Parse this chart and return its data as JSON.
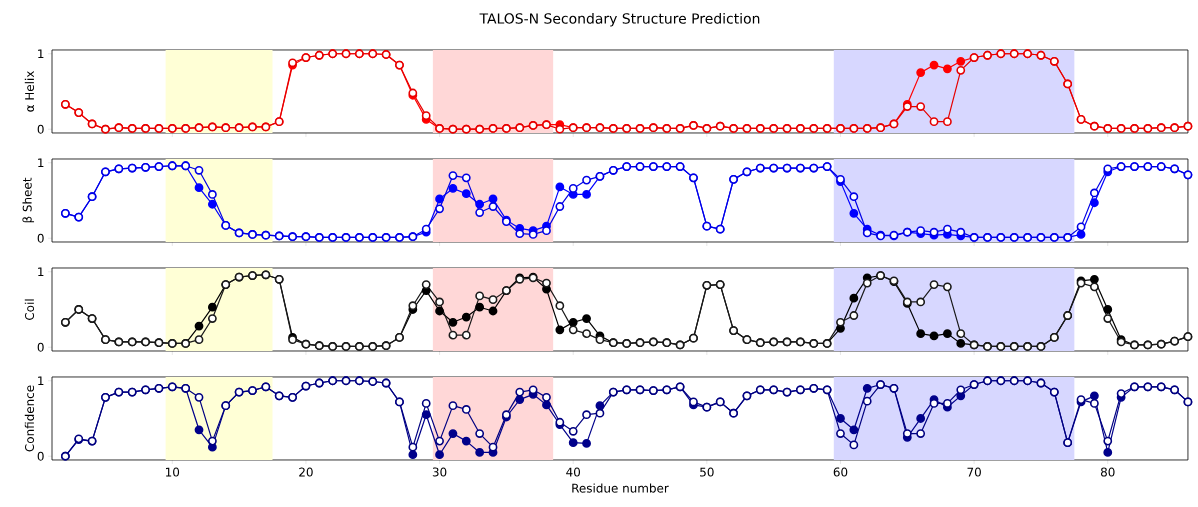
{
  "chart_data": [
    {
      "type": "line",
      "title": "TALOS-N Secondary Structure Prediction",
      "ylabel": "α Helix",
      "marker": "circle",
      "tick_labels": "y",
      "x": [
        2,
        3,
        4,
        5,
        6,
        7,
        8,
        9,
        10,
        11,
        12,
        13,
        14,
        15,
        16,
        17,
        18,
        19,
        20,
        21,
        22,
        23,
        24,
        25,
        26,
        27,
        28,
        29,
        30,
        31,
        32,
        33,
        34,
        35,
        36,
        37,
        38,
        39,
        40,
        41,
        42,
        43,
        44,
        45,
        46,
        47,
        48,
        49,
        50,
        51,
        52,
        53,
        54,
        55,
        56,
        57,
        58,
        59,
        60,
        61,
        62,
        63,
        64,
        65,
        66,
        67,
        68,
        69,
        70,
        71,
        72,
        73,
        74,
        75,
        76,
        77,
        78,
        79,
        80,
        81,
        82,
        83,
        84,
        85,
        86
      ],
      "xlim": [
        1,
        86
      ],
      "xticks": [
        10,
        20,
        30,
        40,
        50,
        60,
        70,
        80
      ],
      "ylim": [
        -0.05,
        1.05
      ],
      "yticks": [
        0,
        1
      ],
      "bands": [
        {
          "axis": "x",
          "from": 9.5,
          "to": 17.5,
          "color": "#ffffd6"
        },
        {
          "axis": "x",
          "from": 29.5,
          "to": 38.5,
          "color": "#ffd7d7"
        },
        {
          "axis": "x",
          "from": 59.5,
          "to": 77.5,
          "color": "#d7d7ff"
        }
      ],
      "series": [
        {
          "color": "#ff0000",
          "values": [
            0.33,
            0.22,
            0.07,
            0.0,
            0.02,
            0.01,
            0.01,
            0.01,
            0.01,
            0.01,
            0.02,
            0.03,
            0.02,
            0.02,
            0.03,
            0.03,
            0.1,
            0.85,
            0.95,
            0.98,
            1.0,
            1.0,
            1.0,
            1.0,
            0.99,
            0.85,
            0.45,
            0.13,
            0.01,
            0.0,
            0.0,
            0.0,
            0.01,
            0.01,
            0.02,
            0.05,
            0.06,
            0.06,
            0.02,
            0.02,
            0.02,
            0.01,
            0.01,
            0.01,
            0.02,
            0.01,
            0.01,
            0.05,
            0.01,
            0.04,
            0.01,
            0.01,
            0.01,
            0.01,
            0.01,
            0.01,
            0.01,
            0.01,
            0.01,
            0.01,
            0.01,
            0.02,
            0.07,
            0.33,
            0.75,
            0.85,
            0.8,
            0.9,
            0.95,
            0.98,
            1.0,
            1.0,
            1.0,
            0.98,
            0.9,
            0.6,
            0.13,
            0.04,
            0.01,
            0.01,
            0.01,
            0.01,
            0.02,
            0.02,
            0.04
          ]
        },
        {
          "color": "#e60000",
          "values": [
            0.33,
            0.22,
            0.07,
            0.0,
            0.02,
            0.01,
            0.01,
            0.01,
            0.01,
            0.01,
            0.02,
            0.03,
            0.02,
            0.02,
            0.03,
            0.03,
            0.1,
            0.88,
            0.95,
            0.98,
            1.0,
            1.0,
            1.0,
            1.0,
            0.99,
            0.85,
            0.48,
            0.18,
            0.01,
            0.0,
            0.0,
            0.0,
            0.01,
            0.01,
            0.02,
            0.05,
            0.06,
            0.0,
            0.02,
            0.02,
            0.02,
            0.01,
            0.01,
            0.01,
            0.02,
            0.01,
            0.01,
            0.05,
            0.01,
            0.04,
            0.01,
            0.01,
            0.01,
            0.01,
            0.01,
            0.01,
            0.01,
            0.01,
            0.01,
            0.01,
            0.01,
            0.02,
            0.07,
            0.3,
            0.3,
            0.1,
            0.1,
            0.78,
            0.95,
            0.98,
            1.0,
            1.0,
            1.0,
            0.98,
            0.9,
            0.6,
            0.13,
            0.04,
            0.01,
            0.01,
            0.01,
            0.01,
            0.02,
            0.02,
            0.04
          ]
        }
      ]
    },
    {
      "type": "line",
      "ylabel": "β Sheet",
      "marker": "circle",
      "tick_labels": "y",
      "x": [
        2,
        3,
        4,
        5,
        6,
        7,
        8,
        9,
        10,
        11,
        12,
        13,
        14,
        15,
        16,
        17,
        18,
        19,
        20,
        21,
        22,
        23,
        24,
        25,
        26,
        27,
        28,
        29,
        30,
        31,
        32,
        33,
        34,
        35,
        36,
        37,
        38,
        39,
        40,
        41,
        42,
        43,
        44,
        45,
        46,
        47,
        48,
        49,
        50,
        51,
        52,
        53,
        54,
        55,
        56,
        57,
        58,
        59,
        60,
        61,
        62,
        63,
        64,
        65,
        66,
        67,
        68,
        69,
        70,
        71,
        72,
        73,
        74,
        75,
        76,
        77,
        78,
        79,
        80,
        81,
        82,
        83,
        84,
        85,
        86
      ],
      "xlim": [
        1,
        86
      ],
      "xticks": [
        10,
        20,
        30,
        40,
        50,
        60,
        70,
        80
      ],
      "ylim": [
        -0.05,
        1.05
      ],
      "yticks": [
        0,
        1
      ],
      "bands": [
        {
          "axis": "x",
          "from": 9.5,
          "to": 17.5,
          "color": "#ffffd6"
        },
        {
          "axis": "x",
          "from": 29.5,
          "to": 38.5,
          "color": "#ffd7d7"
        },
        {
          "axis": "x",
          "from": 59.5,
          "to": 77.5,
          "color": "#d7d7ff"
        }
      ],
      "series": [
        {
          "color": "#0000ff",
          "values": [
            0.33,
            0.28,
            0.55,
            0.88,
            0.92,
            0.93,
            0.94,
            0.95,
            0.96,
            0.96,
            0.67,
            0.45,
            0.17,
            0.07,
            0.05,
            0.04,
            0.03,
            0.02,
            0.02,
            0.01,
            0.01,
            0.01,
            0.01,
            0.01,
            0.01,
            0.01,
            0.02,
            0.08,
            0.52,
            0.66,
            0.59,
            0.45,
            0.52,
            0.24,
            0.13,
            0.1,
            0.16,
            0.68,
            0.58,
            0.58,
            0.82,
            0.9,
            0.95,
            0.95,
            0.95,
            0.95,
            0.95,
            0.8,
            0.16,
            0.12,
            0.78,
            0.88,
            0.93,
            0.93,
            0.93,
            0.93,
            0.93,
            0.95,
            0.75,
            0.33,
            0.12,
            0.04,
            0.03,
            0.08,
            0.06,
            0.04,
            0.05,
            0.03,
            0.01,
            0.01,
            0.01,
            0.01,
            0.01,
            0.01,
            0.01,
            0.01,
            0.05,
            0.47,
            0.88,
            0.95,
            0.95,
            0.95,
            0.95,
            0.92,
            0.84
          ]
        },
        {
          "color": "#0000e6",
          "values": [
            0.33,
            0.28,
            0.55,
            0.88,
            0.92,
            0.93,
            0.94,
            0.95,
            0.96,
            0.96,
            0.9,
            0.58,
            0.17,
            0.07,
            0.05,
            0.04,
            0.03,
            0.02,
            0.02,
            0.01,
            0.01,
            0.01,
            0.01,
            0.01,
            0.01,
            0.01,
            0.02,
            0.12,
            0.39,
            0.83,
            0.8,
            0.34,
            0.42,
            0.22,
            0.06,
            0.05,
            0.1,
            0.42,
            0.66,
            0.77,
            0.82,
            0.9,
            0.95,
            0.95,
            0.95,
            0.95,
            0.95,
            0.8,
            0.16,
            0.12,
            0.78,
            0.88,
            0.93,
            0.93,
            0.93,
            0.93,
            0.93,
            0.95,
            0.78,
            0.55,
            0.07,
            0.03,
            0.04,
            0.08,
            0.1,
            0.08,
            0.12,
            0.08,
            0.01,
            0.01,
            0.01,
            0.01,
            0.01,
            0.01,
            0.01,
            0.01,
            0.15,
            0.6,
            0.92,
            0.95,
            0.95,
            0.95,
            0.95,
            0.92,
            0.84
          ]
        }
      ]
    },
    {
      "type": "line",
      "ylabel": "Coil",
      "marker": "circle",
      "tick_labels": "y",
      "x": [
        2,
        3,
        4,
        5,
        6,
        7,
        8,
        9,
        10,
        11,
        12,
        13,
        14,
        15,
        16,
        17,
        18,
        19,
        20,
        21,
        22,
        23,
        24,
        25,
        26,
        27,
        28,
        29,
        30,
        31,
        32,
        33,
        34,
        35,
        36,
        37,
        38,
        39,
        40,
        41,
        42,
        43,
        44,
        45,
        46,
        47,
        48,
        49,
        50,
        51,
        52,
        53,
        54,
        55,
        56,
        57,
        58,
        59,
        60,
        61,
        62,
        63,
        64,
        65,
        66,
        67,
        68,
        69,
        70,
        71,
        72,
        73,
        74,
        75,
        76,
        77,
        78,
        79,
        80,
        81,
        82,
        83,
        84,
        85,
        86
      ],
      "xlim": [
        1,
        86
      ],
      "xticks": [
        10,
        20,
        30,
        40,
        50,
        60,
        70,
        80
      ],
      "ylim": [
        -0.05,
        1.05
      ],
      "yticks": [
        0,
        1
      ],
      "bands": [
        {
          "axis": "x",
          "from": 9.5,
          "to": 17.5,
          "color": "#ffffd6"
        },
        {
          "axis": "x",
          "from": 29.5,
          "to": 38.5,
          "color": "#ffd7d7"
        },
        {
          "axis": "x",
          "from": 59.5,
          "to": 77.5,
          "color": "#d7d7ff"
        }
      ],
      "series": [
        {
          "color": "#000000",
          "values": [
            0.33,
            0.5,
            0.38,
            0.1,
            0.07,
            0.07,
            0.07,
            0.06,
            0.05,
            0.05,
            0.28,
            0.53,
            0.83,
            0.93,
            0.95,
            0.96,
            0.9,
            0.13,
            0.04,
            0.02,
            0.01,
            0.01,
            0.01,
            0.01,
            0.02,
            0.13,
            0.5,
            0.75,
            0.48,
            0.33,
            0.4,
            0.53,
            0.48,
            0.75,
            0.92,
            0.93,
            0.77,
            0.23,
            0.33,
            0.38,
            0.15,
            0.06,
            0.05,
            0.06,
            0.07,
            0.06,
            0.03,
            0.12,
            0.82,
            0.83,
            0.22,
            0.1,
            0.06,
            0.07,
            0.07,
            0.07,
            0.05,
            0.05,
            0.25,
            0.65,
            0.92,
            0.95,
            0.87,
            0.58,
            0.18,
            0.15,
            0.18,
            0.05,
            0.03,
            0.01,
            0.01,
            0.01,
            0.01,
            0.01,
            0.13,
            0.42,
            0.88,
            0.9,
            0.5,
            0.1,
            0.03,
            0.03,
            0.04,
            0.08,
            0.14
          ]
        },
        {
          "color": "#1a1a1a",
          "values": [
            0.33,
            0.5,
            0.38,
            0.1,
            0.07,
            0.07,
            0.07,
            0.06,
            0.05,
            0.05,
            0.1,
            0.38,
            0.83,
            0.93,
            0.95,
            0.96,
            0.9,
            0.1,
            0.04,
            0.02,
            0.01,
            0.01,
            0.01,
            0.01,
            0.02,
            0.13,
            0.55,
            0.83,
            0.6,
            0.16,
            0.16,
            0.68,
            0.63,
            0.75,
            0.9,
            0.92,
            0.85,
            0.55,
            0.23,
            0.18,
            0.1,
            0.06,
            0.05,
            0.06,
            0.07,
            0.06,
            0.03,
            0.12,
            0.82,
            0.83,
            0.22,
            0.1,
            0.06,
            0.07,
            0.07,
            0.07,
            0.05,
            0.05,
            0.33,
            0.42,
            0.85,
            0.95,
            0.88,
            0.6,
            0.6,
            0.83,
            0.8,
            0.18,
            0.03,
            0.01,
            0.01,
            0.01,
            0.01,
            0.01,
            0.13,
            0.42,
            0.85,
            0.8,
            0.38,
            0.07,
            0.03,
            0.03,
            0.04,
            0.08,
            0.14
          ]
        }
      ]
    },
    {
      "type": "line",
      "ylabel": "Confidence",
      "xlabel": "Residue number",
      "marker": "circle",
      "x": [
        2,
        3,
        4,
        5,
        6,
        7,
        8,
        9,
        10,
        11,
        12,
        13,
        14,
        15,
        16,
        17,
        18,
        19,
        20,
        21,
        22,
        23,
        24,
        25,
        26,
        27,
        28,
        29,
        30,
        31,
        32,
        33,
        34,
        35,
        36,
        37,
        38,
        39,
        40,
        41,
        42,
        43,
        44,
        45,
        46,
        47,
        48,
        49,
        50,
        51,
        52,
        53,
        54,
        55,
        56,
        57,
        58,
        59,
        60,
        61,
        62,
        63,
        64,
        65,
        66,
        67,
        68,
        69,
        70,
        71,
        72,
        73,
        74,
        75,
        76,
        77,
        78,
        79,
        80,
        81,
        82,
        83,
        84,
        85,
        86
      ],
      "xlim": [
        1,
        86
      ],
      "xticks": [
        10,
        20,
        30,
        40,
        50,
        60,
        70,
        80
      ],
      "ylim": [
        -0.05,
        1.05
      ],
      "yticks": [
        0,
        1
      ],
      "bands": [
        {
          "axis": "x",
          "from": 9.5,
          "to": 17.5,
          "color": "#ffffd6"
        },
        {
          "axis": "x",
          "from": 29.5,
          "to": 38.5,
          "color": "#ffd7d7"
        },
        {
          "axis": "x",
          "from": 59.5,
          "to": 77.5,
          "color": "#d7d7ff"
        }
      ],
      "series": [
        {
          "color": "#00008b",
          "values": [
            0.0,
            0.22,
            0.2,
            0.78,
            0.85,
            0.85,
            0.88,
            0.9,
            0.92,
            0.9,
            0.35,
            0.12,
            0.67,
            0.85,
            0.87,
            0.92,
            0.8,
            0.78,
            0.93,
            0.97,
            1.0,
            1.0,
            1.0,
            0.99,
            0.97,
            0.72,
            0.02,
            0.55,
            0.02,
            0.3,
            0.2,
            0.05,
            0.05,
            0.52,
            0.75,
            0.82,
            0.68,
            0.42,
            0.18,
            0.17,
            0.67,
            0.85,
            0.88,
            0.88,
            0.87,
            0.88,
            0.92,
            0.68,
            0.65,
            0.72,
            0.57,
            0.8,
            0.88,
            0.88,
            0.85,
            0.88,
            0.9,
            0.88,
            0.5,
            0.35,
            0.9,
            0.95,
            0.9,
            0.25,
            0.5,
            0.75,
            0.65,
            0.8,
            0.95,
            1.0,
            1.0,
            1.0,
            1.0,
            0.97,
            0.85,
            0.18,
            0.72,
            0.8,
            0.05,
            0.78,
            0.92,
            0.92,
            0.92,
            0.88,
            0.72
          ]
        },
        {
          "color": "#000080",
          "values": [
            0.0,
            0.23,
            0.2,
            0.78,
            0.85,
            0.85,
            0.88,
            0.9,
            0.92,
            0.9,
            0.78,
            0.2,
            0.67,
            0.85,
            0.87,
            0.92,
            0.8,
            0.78,
            0.93,
            0.97,
            1.0,
            1.0,
            1.0,
            0.99,
            0.97,
            0.72,
            0.12,
            0.7,
            0.2,
            0.67,
            0.62,
            0.3,
            0.12,
            0.55,
            0.85,
            0.88,
            0.78,
            0.45,
            0.33,
            0.55,
            0.57,
            0.85,
            0.88,
            0.88,
            0.87,
            0.88,
            0.92,
            0.72,
            0.65,
            0.72,
            0.57,
            0.8,
            0.88,
            0.88,
            0.85,
            0.88,
            0.9,
            0.88,
            0.3,
            0.15,
            0.73,
            0.95,
            0.9,
            0.3,
            0.3,
            0.7,
            0.7,
            0.88,
            0.95,
            1.0,
            1.0,
            1.0,
            1.0,
            0.97,
            0.85,
            0.18,
            0.75,
            0.7,
            0.2,
            0.83,
            0.92,
            0.92,
            0.92,
            0.88,
            0.72
          ]
        }
      ]
    }
  ]
}
